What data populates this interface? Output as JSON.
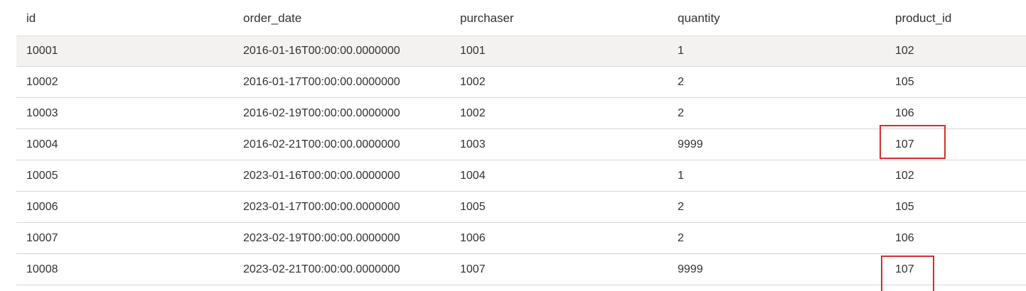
{
  "table": {
    "columns": [
      "id",
      "order_date",
      "purchaser",
      "quantity",
      "product_id"
    ],
    "rows": [
      [
        "10001",
        "2016-01-16T00:00:00.0000000",
        "1001",
        "1",
        "102"
      ],
      [
        "10002",
        "2016-01-17T00:00:00.0000000",
        "1002",
        "2",
        "105"
      ],
      [
        "10003",
        "2016-02-19T00:00:00.0000000",
        "1002",
        "2",
        "106"
      ],
      [
        "10004",
        "2016-02-21T00:00:00.0000000",
        "1003",
        "9999",
        "107"
      ],
      [
        "10005",
        "2023-01-16T00:00:00.0000000",
        "1004",
        "1",
        "102"
      ],
      [
        "10006",
        "2023-01-17T00:00:00.0000000",
        "1005",
        "2",
        "105"
      ],
      [
        "10007",
        "2023-02-19T00:00:00.0000000",
        "1006",
        "2",
        "106"
      ],
      [
        "10008",
        "2023-02-21T00:00:00.0000000",
        "1007",
        "9999",
        "107"
      ]
    ],
    "selected_row": 0,
    "highlighted_cells": [
      {
        "row": 3,
        "column": "product_id"
      },
      {
        "row": 7,
        "column": "product_id"
      }
    ]
  },
  "colors": {
    "highlight_border": "#d92b2b",
    "selected_row_bg": "#f3f2f1",
    "row_divider": "#d6d6d6"
  }
}
